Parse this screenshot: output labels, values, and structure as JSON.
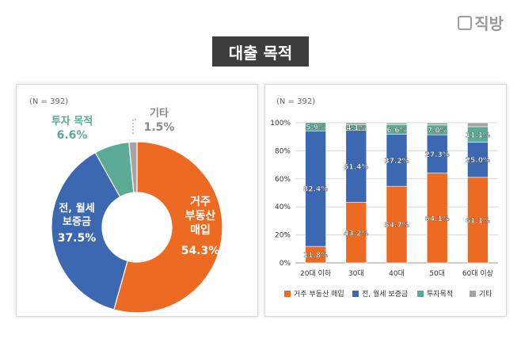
{
  "brand": {
    "name": "직방"
  },
  "page_title": "대출 목적",
  "chart_data": [
    {
      "type": "pie",
      "note": "(N = 392)",
      "slices": [
        {
          "label": "거주 부동산 매입",
          "value": 54.3,
          "value_label": "54.3%",
          "color": "#ed6a22"
        },
        {
          "label": "전, 월세 보증금",
          "value": 37.5,
          "value_label": "37.5%",
          "color": "#3c68b1"
        },
        {
          "label": "투자 목적",
          "value": 6.6,
          "value_label": "6.6%",
          "color": "#5aaa95"
        },
        {
          "label": "기타",
          "value": 1.5,
          "value_label": "1.5%",
          "color": "#a5a5a5"
        }
      ]
    },
    {
      "type": "bar",
      "stacked": true,
      "note": "(N = 392)",
      "categories": [
        "20대 이하",
        "30대",
        "40대",
        "50대",
        "60대 이상"
      ],
      "ylim": [
        0,
        100
      ],
      "yticks": [
        "0%",
        "20%",
        "40%",
        "60%",
        "80%",
        "100%"
      ],
      "legend_position": "bottom",
      "series": [
        {
          "name": "거주 부동산 매입",
          "color": "#ed6a22",
          "values": [
            11.8,
            43.2,
            54.7,
            64.1,
            61.1
          ],
          "labels": [
            "11.8%",
            "43.2%",
            "54.7%",
            "64.1%",
            "61.1%"
          ]
        },
        {
          "name": "전, 월세 보증금",
          "color": "#3c68b1",
          "values": [
            82.4,
            51.4,
            37.2,
            27.3,
            25.0
          ],
          "labels": [
            "82.4%",
            "51.4%",
            "37.2%",
            "27.3%",
            "25.0%"
          ]
        },
        {
          "name": "투자목적",
          "color": "#5aaa95",
          "values": [
            5.9,
            4.1,
            6.6,
            7.0,
            11.1
          ],
          "labels": [
            "5.9%",
            "4.1%",
            "6.6%",
            "7.0%",
            "11.1%"
          ]
        },
        {
          "name": "기타",
          "color": "#a5a5a5",
          "values": [
            0.0,
            1.4,
            1.4,
            1.6,
            2.8
          ],
          "labels": [
            "",
            "",
            "",
            "",
            ""
          ]
        }
      ]
    }
  ]
}
